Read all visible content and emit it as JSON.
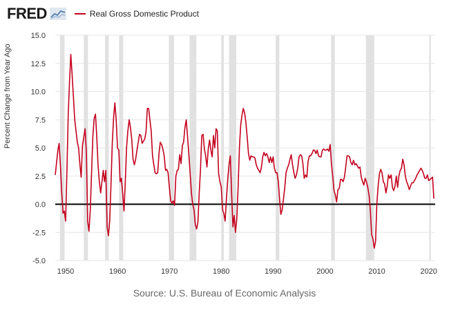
{
  "header": {
    "logo_text": "FRED",
    "legend_label": "Real Gross Domestic Product"
  },
  "footer": {
    "source": "Source: U.S. Bureau of Economic Analysis"
  },
  "colors": {
    "series": "#c4001d",
    "recession": "#e1e1e1",
    "zero_line": "#000000",
    "grid": "#e6e6e6"
  },
  "chart_data": {
    "type": "line",
    "title": "",
    "xlabel": "",
    "ylabel": "Percent Change from Year Ago",
    "xlim": [
      1948.0,
      2021.25
    ],
    "ylim": [
      -5.0,
      15.0
    ],
    "x_ticks": [
      "1950",
      "1960",
      "1970",
      "1980",
      "1990",
      "2000",
      "2010",
      "2020"
    ],
    "y_ticks": [
      "15.0",
      "12.5",
      "10.0",
      "7.5",
      "5.0",
      "2.5",
      "0.0",
      "-2.5",
      "-5.0"
    ],
    "grid": "horizontal",
    "legend_position": "top",
    "recessions": [
      [
        1948.9,
        1949.8
      ],
      [
        1953.5,
        1954.3
      ],
      [
        1957.6,
        1958.3
      ],
      [
        1960.3,
        1961.1
      ],
      [
        1969.9,
        1970.9
      ],
      [
        1973.9,
        1975.2
      ],
      [
        1980.0,
        1980.5
      ],
      [
        1981.5,
        1982.9
      ],
      [
        1990.5,
        1991.2
      ],
      [
        2001.2,
        2001.9
      ],
      [
        2007.9,
        2009.5
      ],
      [
        2020.1,
        2020.4
      ]
    ],
    "series": [
      {
        "name": "Real Gross Domestic Product",
        "points": [
          [
            1948.0,
            2.6
          ],
          [
            1948.5,
            4.8
          ],
          [
            1948.75,
            5.4
          ],
          [
            1949.0,
            3.4
          ],
          [
            1949.25,
            1.0
          ],
          [
            1949.5,
            -0.8
          ],
          [
            1949.75,
            -0.6
          ],
          [
            1950.0,
            -1.5
          ],
          [
            1950.25,
            3.0
          ],
          [
            1950.5,
            8.0
          ],
          [
            1950.75,
            10.8
          ],
          [
            1951.0,
            13.3
          ],
          [
            1951.25,
            11.5
          ],
          [
            1951.5,
            9.5
          ],
          [
            1951.75,
            7.5
          ],
          [
            1952.25,
            5.5
          ],
          [
            1952.5,
            5.0
          ],
          [
            1952.75,
            3.5
          ],
          [
            1953.0,
            2.4
          ],
          [
            1953.25,
            5.2
          ],
          [
            1953.75,
            6.7
          ],
          [
            1954.0,
            4.5
          ],
          [
            1954.25,
            -1.5
          ],
          [
            1954.5,
            -2.4
          ],
          [
            1954.75,
            -0.5
          ],
          [
            1955.25,
            6.0
          ],
          [
            1955.5,
            7.6
          ],
          [
            1955.75,
            8.0
          ],
          [
            1956.0,
            6.0
          ],
          [
            1956.25,
            3.5
          ],
          [
            1956.5,
            2.0
          ],
          [
            1956.75,
            1.0
          ],
          [
            1957.0,
            2.0
          ],
          [
            1957.25,
            3.0
          ],
          [
            1957.5,
            2.0
          ],
          [
            1957.75,
            3.0
          ],
          [
            1958.0,
            -2.0
          ],
          [
            1958.25,
            -2.8
          ],
          [
            1958.5,
            -1.5
          ],
          [
            1958.75,
            1.8
          ],
          [
            1959.0,
            5.5
          ],
          [
            1959.25,
            7.7
          ],
          [
            1959.5,
            9.0
          ],
          [
            1959.75,
            7.5
          ],
          [
            1960.0,
            5.0
          ],
          [
            1960.25,
            4.8
          ],
          [
            1960.5,
            2.0
          ],
          [
            1960.75,
            2.3
          ],
          [
            1961.0,
            1.0
          ],
          [
            1961.25,
            -0.6
          ],
          [
            1961.5,
            2.0
          ],
          [
            1961.75,
            5.0
          ],
          [
            1962.0,
            6.5
          ],
          [
            1962.25,
            7.5
          ],
          [
            1962.5,
            6.8
          ],
          [
            1962.75,
            5.7
          ],
          [
            1963.0,
            4.0
          ],
          [
            1963.25,
            3.5
          ],
          [
            1963.5,
            4.0
          ],
          [
            1963.75,
            4.8
          ],
          [
            1964.25,
            6.2
          ],
          [
            1964.5,
            6.1
          ],
          [
            1964.75,
            5.4
          ],
          [
            1965.25,
            5.8
          ],
          [
            1965.5,
            6.4
          ],
          [
            1965.75,
            8.5
          ],
          [
            1966.0,
            8.5
          ],
          [
            1966.25,
            7.5
          ],
          [
            1966.5,
            6.5
          ],
          [
            1966.75,
            4.3
          ],
          [
            1967.0,
            3.5
          ],
          [
            1967.25,
            2.8
          ],
          [
            1967.5,
            2.7
          ],
          [
            1967.75,
            2.8
          ],
          [
            1968.0,
            4.5
          ],
          [
            1968.25,
            5.5
          ],
          [
            1968.5,
            5.3
          ],
          [
            1968.75,
            4.9
          ],
          [
            1969.0,
            4.3
          ],
          [
            1969.25,
            3.0
          ],
          [
            1969.5,
            3.1
          ],
          [
            1969.75,
            2.8
          ],
          [
            1970.0,
            1.5
          ],
          [
            1970.25,
            0.3
          ],
          [
            1970.5,
            0.1
          ],
          [
            1970.75,
            0.3
          ],
          [
            1971.0,
            -0.1
          ],
          [
            1971.25,
            2.5
          ],
          [
            1971.5,
            3.0
          ],
          [
            1971.75,
            3.1
          ],
          [
            1972.0,
            4.4
          ],
          [
            1972.25,
            3.6
          ],
          [
            1972.5,
            5.2
          ],
          [
            1972.75,
            5.5
          ],
          [
            1973.0,
            6.8
          ],
          [
            1973.25,
            7.5
          ],
          [
            1973.5,
            6.0
          ],
          [
            1973.75,
            4.5
          ],
          [
            1974.0,
            2.8
          ],
          [
            1974.25,
            1.0
          ],
          [
            1974.5,
            0.0
          ],
          [
            1974.75,
            -0.5
          ],
          [
            1975.0,
            -1.8
          ],
          [
            1975.25,
            -2.2
          ],
          [
            1975.5,
            -1.6
          ],
          [
            1975.75,
            1.0
          ],
          [
            1976.0,
            3.0
          ],
          [
            1976.25,
            6.1
          ],
          [
            1976.5,
            6.2
          ],
          [
            1976.75,
            4.9
          ],
          [
            1977.0,
            4.3
          ],
          [
            1977.25,
            3.3
          ],
          [
            1977.5,
            4.9
          ],
          [
            1977.75,
            5.7
          ],
          [
            1978.0,
            4.8
          ],
          [
            1978.25,
            4.2
          ],
          [
            1978.5,
            6.1
          ],
          [
            1978.75,
            5.0
          ],
          [
            1979.0,
            6.7
          ],
          [
            1979.25,
            6.5
          ],
          [
            1979.5,
            2.7
          ],
          [
            1979.75,
            2.0
          ],
          [
            1980.0,
            1.5
          ],
          [
            1980.25,
            -0.5
          ],
          [
            1980.5,
            -0.8
          ],
          [
            1980.75,
            -1.5
          ],
          [
            1981.0,
            0.5
          ],
          [
            1981.25,
            2.2
          ],
          [
            1981.5,
            3.5
          ],
          [
            1981.75,
            4.3
          ],
          [
            1982.0,
            1.0
          ],
          [
            1982.25,
            -2.0
          ],
          [
            1982.5,
            -1.0
          ],
          [
            1982.75,
            -2.5
          ],
          [
            1983.0,
            -1.3
          ],
          [
            1983.25,
            1.5
          ],
          [
            1983.5,
            5.0
          ],
          [
            1983.75,
            7.0
          ],
          [
            1984.0,
            7.9
          ],
          [
            1984.25,
            8.5
          ],
          [
            1984.5,
            8.1
          ],
          [
            1984.75,
            7.3
          ],
          [
            1985.0,
            6.0
          ],
          [
            1985.25,
            4.5
          ],
          [
            1985.5,
            3.9
          ],
          [
            1985.75,
            4.3
          ],
          [
            1986.0,
            4.2
          ],
          [
            1986.25,
            4.2
          ],
          [
            1986.5,
            4.1
          ],
          [
            1986.75,
            3.5
          ],
          [
            1987.0,
            3.2
          ],
          [
            1987.25,
            3.0
          ],
          [
            1987.5,
            2.8
          ],
          [
            1987.75,
            3.3
          ],
          [
            1988.0,
            4.2
          ],
          [
            1988.25,
            4.6
          ],
          [
            1988.5,
            4.3
          ],
          [
            1988.75,
            4.5
          ],
          [
            1989.0,
            4.2
          ],
          [
            1989.25,
            3.7
          ],
          [
            1989.5,
            4.2
          ],
          [
            1989.75,
            3.7
          ],
          [
            1990.0,
            4.2
          ],
          [
            1990.25,
            3.2
          ],
          [
            1990.5,
            2.8
          ],
          [
            1990.75,
            2.8
          ],
          [
            1991.0,
            2.0
          ],
          [
            1991.25,
            0.5
          ],
          [
            1991.5,
            -0.9
          ],
          [
            1991.75,
            -0.5
          ],
          [
            1992.0,
            0.5
          ],
          [
            1992.25,
            1.5
          ],
          [
            1992.5,
            2.8
          ],
          [
            1992.75,
            3.2
          ],
          [
            1993.0,
            3.5
          ],
          [
            1993.25,
            4.0
          ],
          [
            1993.5,
            4.4
          ],
          [
            1993.75,
            3.5
          ],
          [
            1994.0,
            2.8
          ],
          [
            1994.25,
            2.3
          ],
          [
            1994.5,
            2.6
          ],
          [
            1994.75,
            3.2
          ],
          [
            1995.0,
            4.2
          ],
          [
            1995.25,
            4.4
          ],
          [
            1995.5,
            4.3
          ],
          [
            1995.75,
            3.6
          ],
          [
            1996.0,
            2.3
          ],
          [
            1996.25,
            2.6
          ],
          [
            1996.5,
            2.4
          ],
          [
            1996.75,
            3.8
          ],
          [
            1997.0,
            4.3
          ],
          [
            1997.25,
            4.3
          ],
          [
            1997.5,
            4.5
          ],
          [
            1997.75,
            4.8
          ],
          [
            1998.0,
            4.8
          ],
          [
            1998.25,
            4.5
          ],
          [
            1998.5,
            4.8
          ],
          [
            1998.75,
            4.3
          ],
          [
            1999.0,
            4.2
          ],
          [
            1999.25,
            4.2
          ],
          [
            1999.5,
            4.8
          ],
          [
            1999.75,
            4.9
          ],
          [
            2000.0,
            4.8
          ],
          [
            2000.25,
            4.8
          ],
          [
            2000.5,
            4.9
          ],
          [
            2000.75,
            4.7
          ],
          [
            2001.0,
            5.3
          ],
          [
            2001.25,
            3.6
          ],
          [
            2001.5,
            2.5
          ],
          [
            2001.75,
            1.2
          ],
          [
            2002.0,
            0.8
          ],
          [
            2002.25,
            0.2
          ],
          [
            2002.5,
            1.3
          ],
          [
            2002.75,
            1.4
          ],
          [
            2003.0,
            2.2
          ],
          [
            2003.25,
            2.2
          ],
          [
            2003.5,
            2.0
          ],
          [
            2003.75,
            2.4
          ],
          [
            2004.0,
            3.3
          ],
          [
            2004.25,
            4.3
          ],
          [
            2004.5,
            4.3
          ],
          [
            2004.75,
            4.2
          ],
          [
            2005.0,
            3.7
          ],
          [
            2005.25,
            3.5
          ],
          [
            2005.5,
            3.9
          ],
          [
            2005.75,
            3.5
          ],
          [
            2006.0,
            3.6
          ],
          [
            2006.25,
            3.4
          ],
          [
            2006.5,
            3.2
          ],
          [
            2006.75,
            3.3
          ],
          [
            2007.0,
            2.4
          ],
          [
            2007.25,
            2.0
          ],
          [
            2007.5,
            1.7
          ],
          [
            2007.75,
            2.3
          ],
          [
            2008.0,
            2.0
          ],
          [
            2008.25,
            1.5
          ],
          [
            2008.5,
            0.8
          ],
          [
            2008.75,
            -0.5
          ],
          [
            2009.0,
            -2.7
          ],
          [
            2009.25,
            -3.1
          ],
          [
            2009.5,
            -3.9
          ],
          [
            2009.75,
            -3.3
          ],
          [
            2010.0,
            0.0
          ],
          [
            2010.25,
            1.6
          ],
          [
            2010.5,
            2.7
          ],
          [
            2010.75,
            3.1
          ],
          [
            2011.0,
            2.8
          ],
          [
            2011.25,
            2.0
          ],
          [
            2011.5,
            1.8
          ],
          [
            2011.75,
            1.0
          ],
          [
            2012.0,
            1.6
          ],
          [
            2012.25,
            2.6
          ],
          [
            2012.5,
            2.3
          ],
          [
            2012.75,
            2.6
          ],
          [
            2013.0,
            1.5
          ],
          [
            2013.25,
            1.2
          ],
          [
            2013.5,
            1.6
          ],
          [
            2013.75,
            2.5
          ],
          [
            2014.0,
            1.5
          ],
          [
            2014.25,
            2.5
          ],
          [
            2014.5,
            3.0
          ],
          [
            2014.75,
            3.2
          ],
          [
            2015.0,
            4.0
          ],
          [
            2015.25,
            3.5
          ],
          [
            2015.5,
            2.5
          ],
          [
            2015.75,
            2.0
          ],
          [
            2016.0,
            1.7
          ],
          [
            2016.25,
            1.3
          ],
          [
            2016.5,
            1.6
          ],
          [
            2016.75,
            1.9
          ],
          [
            2017.0,
            1.9
          ],
          [
            2017.25,
            2.1
          ],
          [
            2017.5,
            2.3
          ],
          [
            2017.75,
            2.6
          ],
          [
            2018.0,
            2.8
          ],
          [
            2018.25,
            3.0
          ],
          [
            2018.5,
            3.2
          ],
          [
            2018.75,
            3.0
          ],
          [
            2019.0,
            2.7
          ],
          [
            2019.25,
            2.3
          ],
          [
            2019.5,
            2.3
          ],
          [
            2019.75,
            2.6
          ],
          [
            2020.0,
            2.1
          ],
          [
            2020.25,
            2.2
          ],
          [
            2020.5,
            2.3
          ],
          [
            2020.75,
            2.4
          ],
          [
            2021.0,
            0.5
          ]
        ]
      }
    ]
  }
}
